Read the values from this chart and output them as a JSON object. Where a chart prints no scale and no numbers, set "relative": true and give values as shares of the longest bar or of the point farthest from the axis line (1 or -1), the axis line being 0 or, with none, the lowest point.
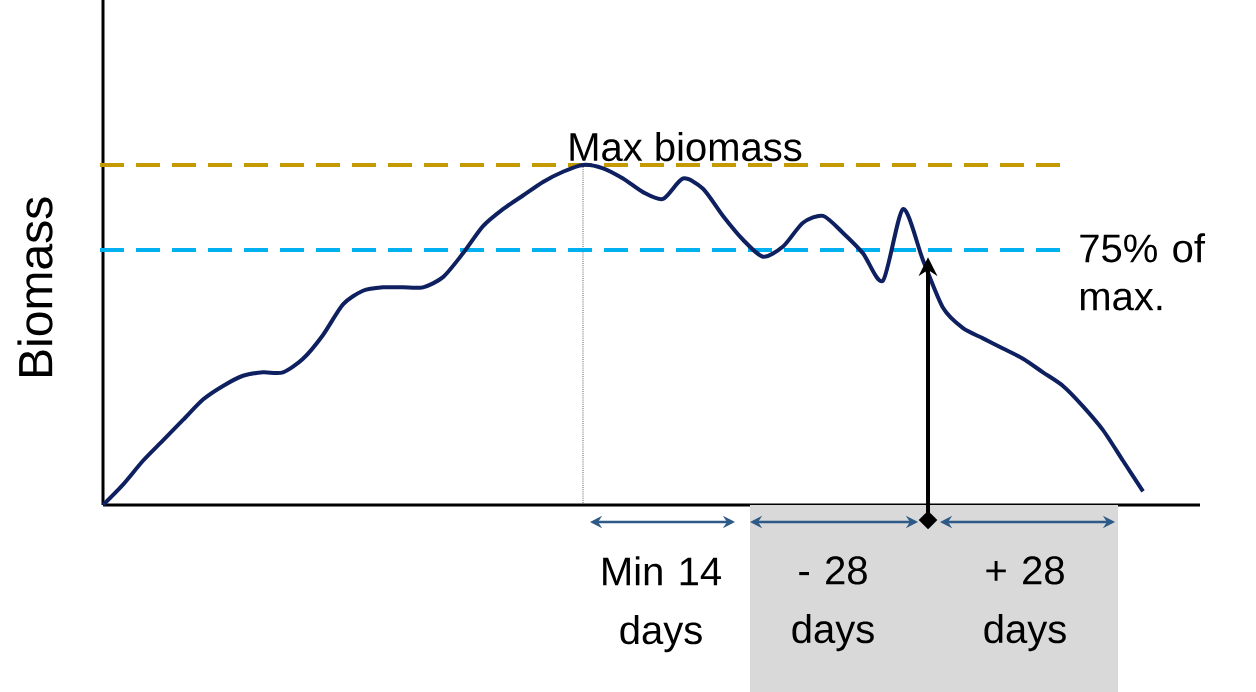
{
  "chart_data": {
    "type": "line",
    "relative": true,
    "ylabel": "Biomass",
    "categories": [
      null,
      null,
      null,
      null,
      null,
      null,
      null,
      null,
      null,
      null,
      null,
      null,
      null,
      null,
      null,
      null,
      null,
      null,
      null,
      null,
      null,
      null,
      null,
      null,
      null,
      null,
      null,
      null,
      null,
      null,
      null,
      null,
      null,
      null,
      null,
      null,
      null,
      null,
      null,
      null,
      null,
      null,
      null,
      null,
      null,
      null,
      null,
      null,
      null,
      null,
      null,
      null,
      null
    ],
    "series": [
      {
        "color": "#0f2060",
        "values": [
          0,
          0.06,
          0.13,
          0.19,
          0.25,
          0.31,
          0.35,
          0.38,
          0.39,
          0.39,
          0.43,
          0.5,
          0.59,
          0.63,
          0.64,
          0.64,
          0.64,
          0.67,
          0.74,
          0.82,
          0.87,
          0.91,
          0.95,
          0.98,
          1,
          0.99,
          0.96,
          0.92,
          0.9,
          0.96,
          0.93,
          0.85,
          0.78,
          0.73,
          0.76,
          0.83,
          0.85,
          0.8,
          0.74,
          0.66,
          0.87,
          0.72,
          0.58,
          0.52,
          0.49,
          0.46,
          0.43,
          0.39,
          0.35,
          0.29,
          0.22,
          0.13,
          0.04
        ]
      }
    ],
    "ref_lines": [
      {
        "axis": "y",
        "value": 1,
        "label": "Max biomass",
        "color": "#c59a00",
        "line_style": "dashed"
      },
      {
        "axis": "y",
        "value": 0.75,
        "label": "75% of max.",
        "color": "#00b0f0",
        "line_style": "dashed"
      }
    ],
    "annotations": [
      "Min 14 days",
      "- 28 days",
      "+ 28 days"
    ]
  }
}
